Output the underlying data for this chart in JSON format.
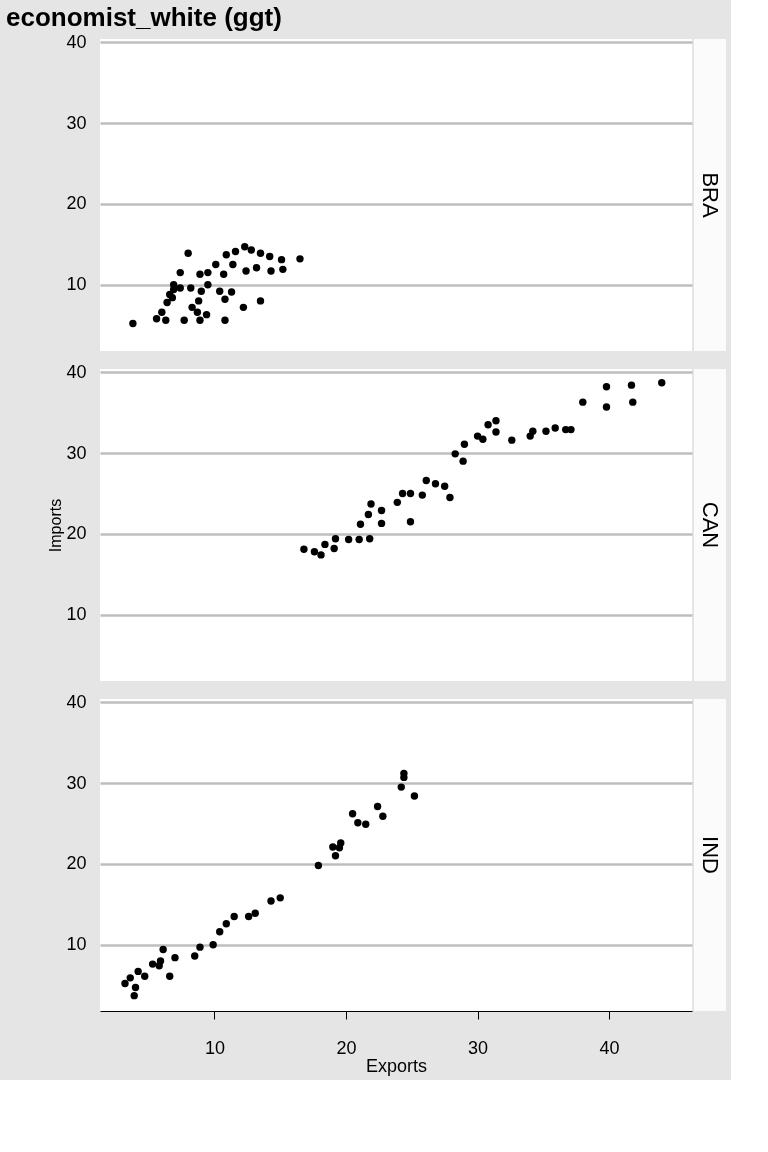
{
  "chart_data": [
    {
      "type": "scatter",
      "title": "economist_white (ggt)",
      "annotations": [
        "BRA"
      ],
      "tick_labels": "y",
      "grid": "y",
      "xlim": [
        1.3,
        46.3
      ],
      "xticks": [
        10,
        20,
        30,
        40
      ],
      "ylim": [
        1.8,
        40.4
      ],
      "yticks": [
        10,
        20,
        30,
        40
      ],
      "series": [
        {
          "color": "#000000",
          "x": [
            3.8,
            5.6,
            6.3,
            6.0,
            6.4,
            6.8,
            6.9,
            7.4,
            7.7,
            8.0,
            7.4,
            8.2,
            8.3,
            8.7,
            8.9,
            9.4,
            8.8,
            9.0,
            8.9,
            9.5,
            9.5,
            10.4,
            10.8,
            11.3,
            10.8,
            10.1,
            10.7,
            10.9,
            11.6,
            12.2,
            13.5,
            11.4,
            12.3,
            12.8,
            13.5,
            14.2,
            12.4,
            13.2,
            14.3,
            15.1,
            15.2,
            16.5,
            6.6,
            6.9
          ],
          "values": [
            5.2,
            5.8,
            5.6,
            6.6,
            7.8,
            8.4,
            9.4,
            9.6,
            5.6,
            13.9,
            11.5,
            9.6,
            7.2,
            6.6,
            5.6,
            6.3,
            8.0,
            9.2,
            11.3,
            11.5,
            10.0,
            9.2,
            8.2,
            9.1,
            5.6,
            12.5,
            11.3,
            13.7,
            14.1,
            7.2,
            8.0,
            12.5,
            14.7,
            14.3,
            13.9,
            13.5,
            11.7,
            12.1,
            11.7,
            13.1,
            11.9,
            13.2,
            8.8,
            10.0
          ]
        }
      ]
    },
    {
      "type": "scatter",
      "ylabel": "Imports",
      "annotations": [
        "CAN"
      ],
      "tick_labels": "y",
      "grid": "y",
      "xlim": [
        1.3,
        46.3
      ],
      "xticks": [
        10,
        20,
        30,
        40
      ],
      "ylim": [
        1.8,
        40.4
      ],
      "yticks": [
        10,
        20,
        30,
        40
      ],
      "series": [
        {
          "color": "#000000",
          "x": [
            16.8,
            17.6,
            18.1,
            18.4,
            19.1,
            19.2,
            20.2,
            21.0,
            21.1,
            21.8,
            21.7,
            21.9,
            22.7,
            22.7,
            23.9,
            24.3,
            24.9,
            24.9,
            25.8,
            26.1,
            26.8,
            27.5,
            27.9,
            28.3,
            28.9,
            29.0,
            30.0,
            30.4,
            30.8,
            31.4,
            31.4,
            32.6,
            34.0,
            34.2,
            35.2,
            35.9,
            36.7,
            37.1,
            38.0,
            39.8,
            39.8,
            41.7,
            41.8,
            44.0
          ],
          "values": [
            18.1,
            17.8,
            17.4,
            18.7,
            18.2,
            19.4,
            19.3,
            19.3,
            21.2,
            19.4,
            22.4,
            23.7,
            22.9,
            21.3,
            23.9,
            25.0,
            25.0,
            21.5,
            24.8,
            26.6,
            26.2,
            25.9,
            24.5,
            29.9,
            29.0,
            31.1,
            32.1,
            31.7,
            33.5,
            34.0,
            32.6,
            31.6,
            32.1,
            32.7,
            32.7,
            33.1,
            32.9,
            32.9,
            36.3,
            38.2,
            35.7,
            38.4,
            36.3,
            38.7
          ]
        }
      ]
    },
    {
      "type": "scatter",
      "xlabel": "Exports",
      "annotations": [
        "IND"
      ],
      "grid": "y",
      "xlim": [
        1.3,
        46.3
      ],
      "xticks": [
        10,
        20,
        30,
        40
      ],
      "ylim": [
        1.8,
        40.4
      ],
      "yticks": [
        10,
        20,
        30,
        40
      ],
      "series": [
        {
          "color": "#000000",
          "x": [
            3.2,
            3.9,
            4.0,
            3.6,
            4.2,
            4.7,
            5.3,
            5.8,
            6.1,
            5.9,
            6.6,
            7.0,
            8.5,
            8.9,
            9.9,
            10.4,
            10.9,
            11.5,
            12.6,
            13.1,
            14.3,
            15.0,
            17.9,
            19.0,
            19.2,
            19.6,
            19.5,
            20.5,
            20.9,
            21.5,
            22.4,
            22.8,
            24.2,
            24.4,
            24.4,
            25.2
          ],
          "values": [
            5.2,
            3.7,
            4.7,
            5.9,
            6.7,
            6.1,
            7.6,
            7.4,
            9.4,
            8.0,
            6.1,
            8.4,
            8.6,
            9.7,
            10.0,
            11.6,
            12.6,
            13.5,
            13.5,
            13.9,
            15.4,
            15.8,
            19.8,
            22.1,
            21.0,
            22.6,
            22.0,
            26.2,
            25.1,
            24.9,
            27.1,
            25.9,
            29.5,
            31.2,
            30.7,
            28.4
          ]
        }
      ]
    }
  ]
}
